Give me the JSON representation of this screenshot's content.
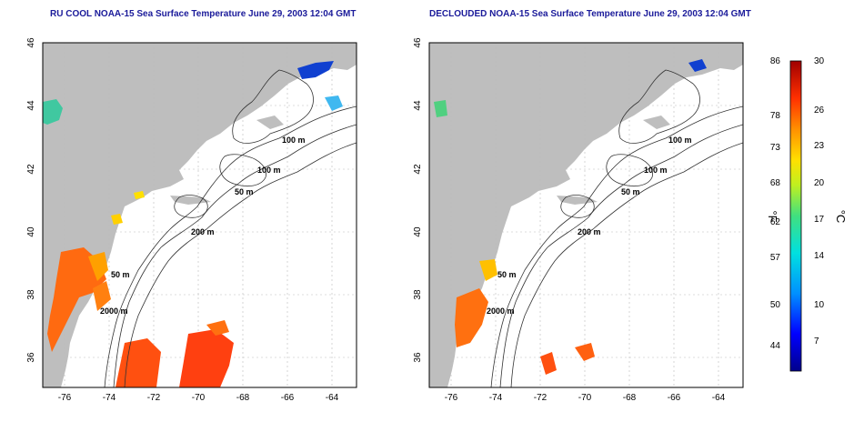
{
  "panels": [
    {
      "id": "left",
      "title": "RU COOL NOAA-15 Sea Surface Temperature June 29, 2003 12:04 GMT",
      "lon_ticks": [
        "-76",
        "-74",
        "-72",
        "-70",
        "-68",
        "-66",
        "-64"
      ],
      "lat_ticks": [
        "46",
        "44",
        "42",
        "40",
        "38",
        "36"
      ],
      "contour_labels": [
        "100 m",
        "100 m",
        "50 m",
        "200 m",
        "50 m",
        "2000 m"
      ]
    },
    {
      "id": "right",
      "title": "DECLOUDED NOAA-15 Sea Surface Temperature June 29, 2003 12:04 GMT",
      "lon_ticks": [
        "-76",
        "-74",
        "-72",
        "-70",
        "-68",
        "-66",
        "-64"
      ],
      "lat_ticks": [
        "46",
        "44",
        "42",
        "40",
        "38",
        "36"
      ],
      "contour_labels": [
        "100 m",
        "100 m",
        "50 m",
        "200 m",
        "50 m",
        "2000 m"
      ]
    }
  ],
  "colorbar": {
    "fahrenheit_labels": [
      "86",
      "78",
      "73",
      "68",
      "62",
      "57",
      "50",
      "44"
    ],
    "celsius_labels": [
      "30",
      "26",
      "23",
      "20",
      "17",
      "14",
      "10",
      "7"
    ],
    "fahrenheit_unit": "°F",
    "celsius_unit": "°C"
  },
  "colors": {
    "land": "#bebebe",
    "ocean": "#ffffff",
    "title": "#1a1a9a",
    "grid": "#aaaaaa"
  }
}
